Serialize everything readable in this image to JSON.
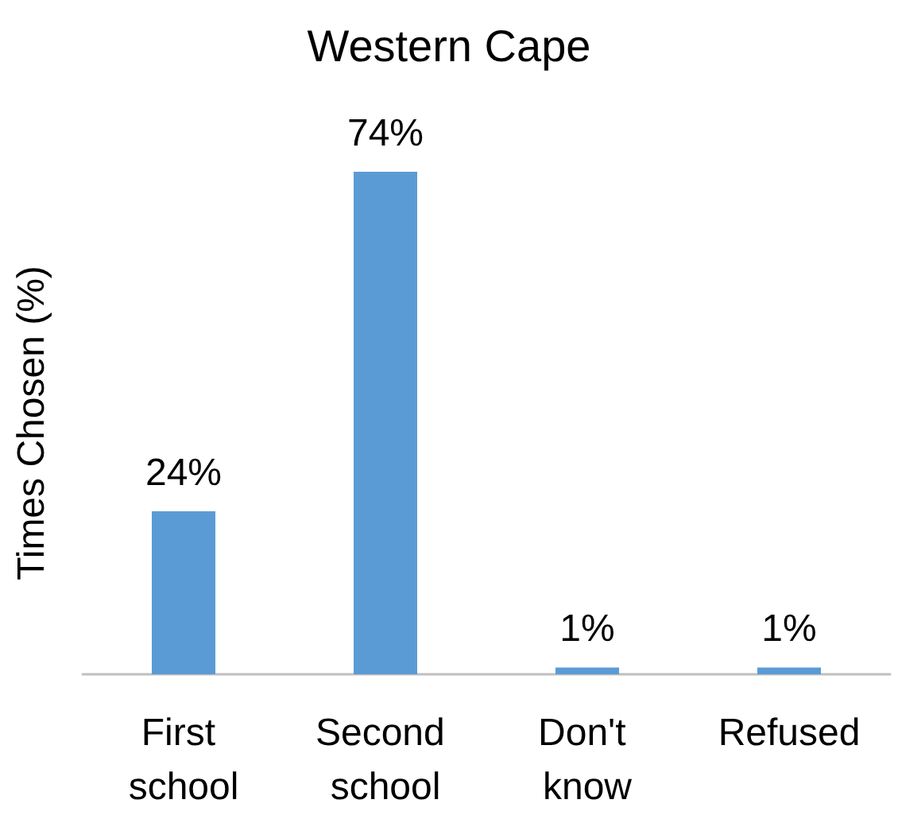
{
  "chart_data": {
    "type": "bar",
    "title": "Western Cape",
    "ylabel": "Times Chosen (%)",
    "categories": [
      "First school",
      "Second school",
      "Don't know",
      "Refused"
    ],
    "values": [
      24,
      74,
      1,
      1
    ],
    "value_labels": [
      "24%",
      "74%",
      "1%",
      "1%"
    ],
    "color": "#5b9bd5"
  }
}
